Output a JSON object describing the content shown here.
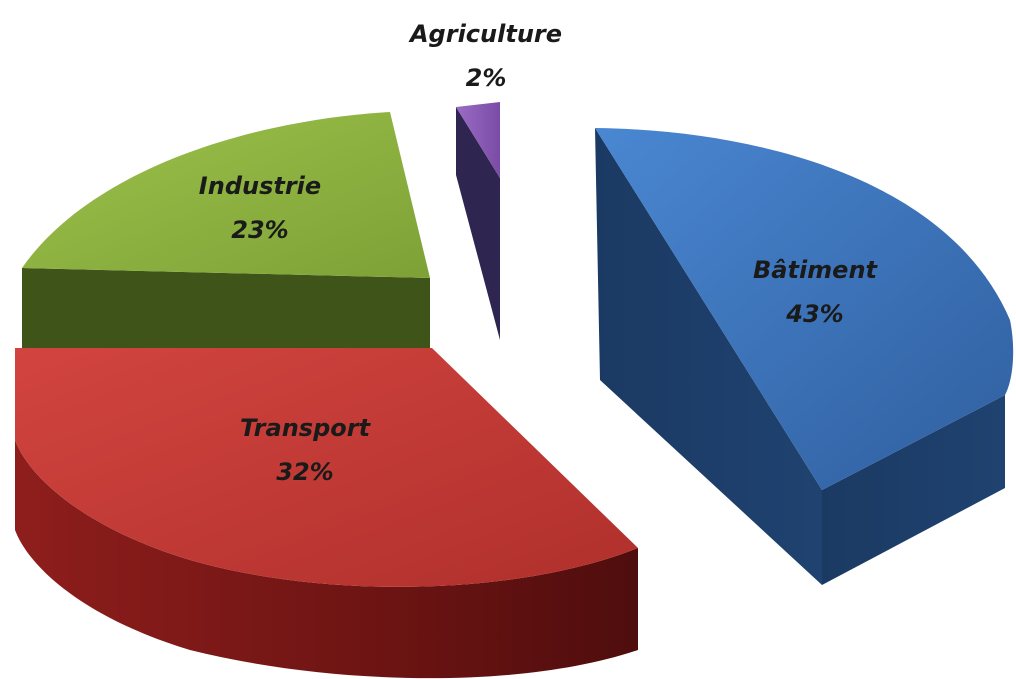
{
  "chart_data": {
    "type": "pie",
    "style": "3d-exploded",
    "slices": [
      {
        "name": "Bâtiment",
        "value": 43,
        "label": "43%",
        "color": "#3b73bd",
        "side_color": "#1e3d68"
      },
      {
        "name": "Transport",
        "value": 32,
        "label": "32%",
        "color": "#c23a36",
        "side_color": "#6a1414"
      },
      {
        "name": "Industrie",
        "value": 23,
        "label": "23%",
        "color": "#8bb03f",
        "side_color": "#3f561a"
      },
      {
        "name": "Agriculture",
        "value": 2,
        "label": "2%",
        "color": "#8a5bb5",
        "side_color": "#2e2550"
      }
    ],
    "legend": "none",
    "grid": false
  }
}
